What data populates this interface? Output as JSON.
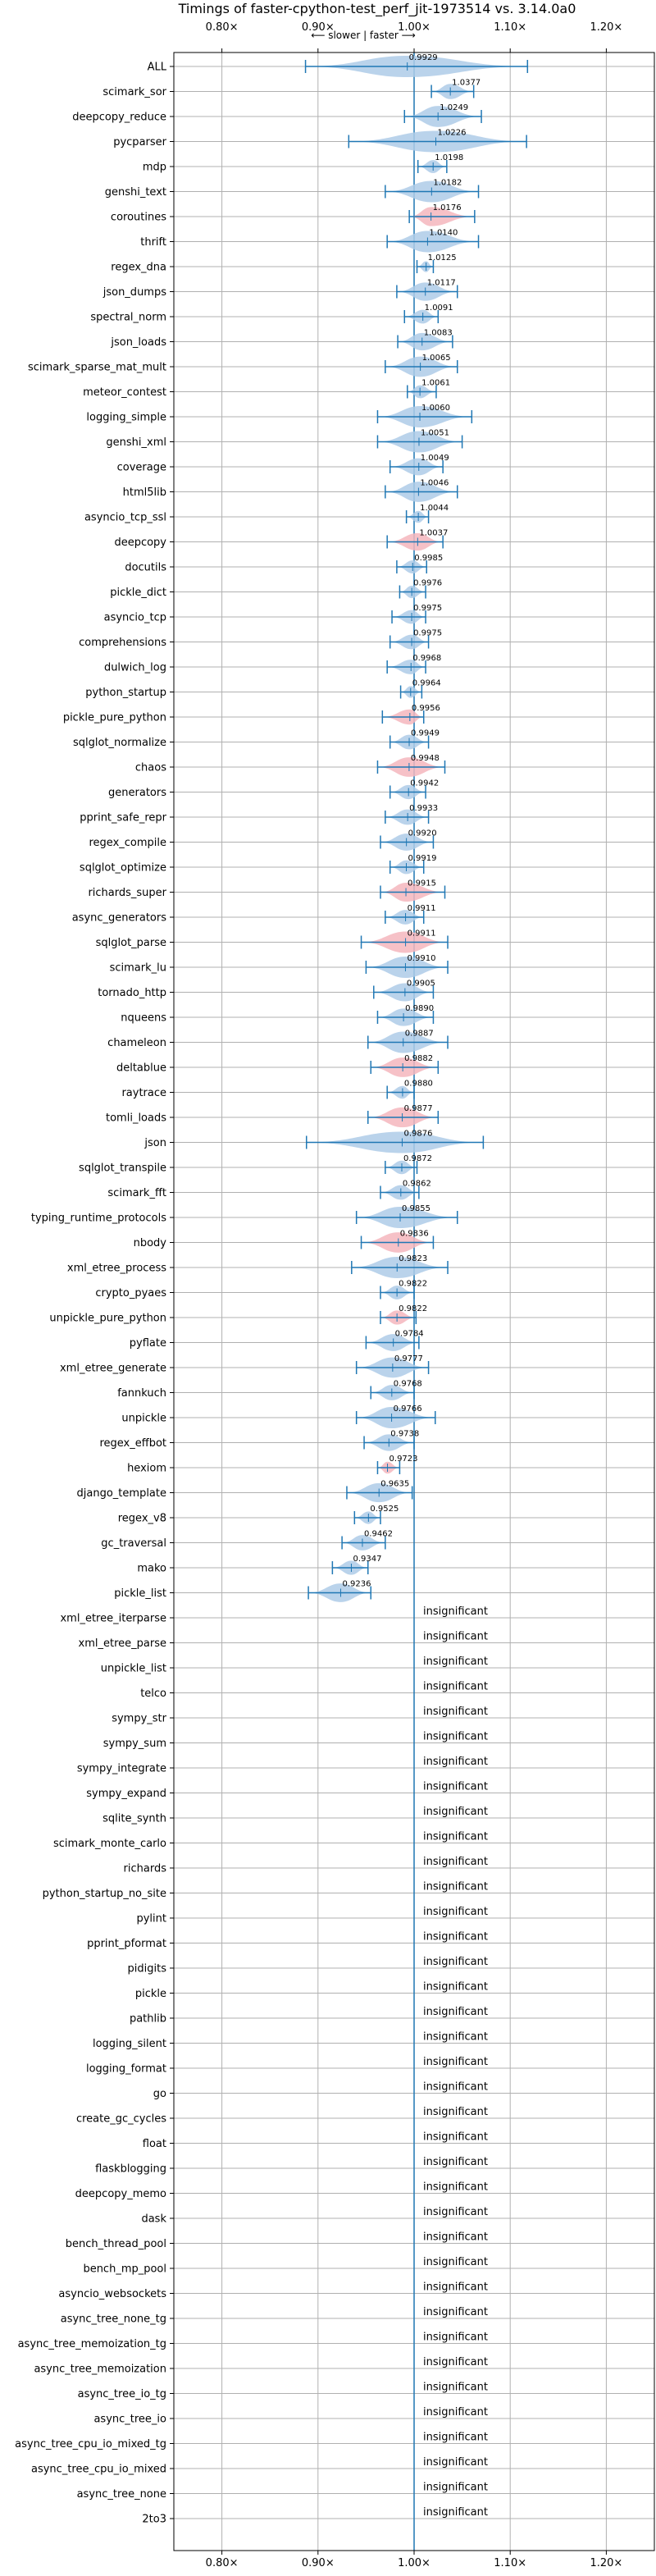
{
  "chart_data": {
    "type": "violin",
    "title": "Timings of faster-cpython-test_perf_jit-1973514 vs. 3.14.0a0",
    "direction_label": "⟵ slower | faster ⟶",
    "xlim": [
      0.75,
      1.25
    ],
    "x_ticks": [
      0.8,
      0.9,
      1.0,
      1.1,
      1.2
    ],
    "x_tick_labels": [
      "0.80×",
      "0.90×",
      "1.00×",
      "1.10×",
      "1.20×"
    ],
    "insignificant_label": "insignificant",
    "colors": {
      "faster": "#aecbe8",
      "slower": "#f4b6bd",
      "line": "#1f77b4",
      "grid": "#b0b0b0"
    },
    "benchmarks": [
      {
        "name": "ALL",
        "value": 0.9929,
        "min": 0.887,
        "max": 1.118,
        "label": "0.9929",
        "color": "blue"
      },
      {
        "name": "scimark_sor",
        "value": 1.0377,
        "min": 1.018,
        "max": 1.062,
        "label": "1.0377",
        "color": "blue"
      },
      {
        "name": "deepcopy_reduce",
        "value": 1.0249,
        "min": 0.99,
        "max": 1.07,
        "label": "1.0249",
        "color": "blue"
      },
      {
        "name": "pycparser",
        "value": 1.0226,
        "min": 0.932,
        "max": 1.117,
        "label": "1.0226",
        "color": "blue"
      },
      {
        "name": "mdp",
        "value": 1.0198,
        "min": 1.004,
        "max": 1.034,
        "label": "1.0198",
        "color": "blue"
      },
      {
        "name": "genshi_text",
        "value": 1.0182,
        "min": 0.97,
        "max": 1.067,
        "label": "1.0182",
        "color": "blue"
      },
      {
        "name": "coroutines",
        "value": 1.0176,
        "min": 0.995,
        "max": 1.063,
        "label": "1.0176",
        "color": "red"
      },
      {
        "name": "thrift",
        "value": 1.014,
        "min": 0.972,
        "max": 1.067,
        "label": "1.0140",
        "color": "blue"
      },
      {
        "name": "regex_dna",
        "value": 1.0125,
        "min": 1.003,
        "max": 1.02,
        "label": "1.0125",
        "color": "blue"
      },
      {
        "name": "json_dumps",
        "value": 1.0117,
        "min": 0.982,
        "max": 1.045,
        "label": "1.0117",
        "color": "blue"
      },
      {
        "name": "spectral_norm",
        "value": 1.0091,
        "min": 0.99,
        "max": 1.025,
        "label": "1.0091",
        "color": "blue"
      },
      {
        "name": "json_loads",
        "value": 1.0083,
        "min": 0.983,
        "max": 1.04,
        "label": "1.0083",
        "color": "blue"
      },
      {
        "name": "scimark_sparse_mat_mult",
        "value": 1.0065,
        "min": 0.97,
        "max": 1.045,
        "label": "1.0065",
        "color": "blue"
      },
      {
        "name": "meteor_contest",
        "value": 1.0061,
        "min": 0.993,
        "max": 1.023,
        "label": "1.0061",
        "color": "blue"
      },
      {
        "name": "logging_simple",
        "value": 1.006,
        "min": 0.962,
        "max": 1.06,
        "label": "1.0060",
        "color": "blue"
      },
      {
        "name": "genshi_xml",
        "value": 1.0051,
        "min": 0.962,
        "max": 1.05,
        "label": "1.0051",
        "color": "blue"
      },
      {
        "name": "coverage",
        "value": 1.0049,
        "min": 0.975,
        "max": 1.03,
        "label": "1.0049",
        "color": "blue"
      },
      {
        "name": "html5lib",
        "value": 1.0046,
        "min": 0.97,
        "max": 1.045,
        "label": "1.0046",
        "color": "blue"
      },
      {
        "name": "asyncio_tcp_ssl",
        "value": 1.0044,
        "min": 0.992,
        "max": 1.015,
        "label": "1.0044",
        "color": "blue"
      },
      {
        "name": "deepcopy",
        "value": 1.0037,
        "min": 0.972,
        "max": 1.03,
        "label": "1.0037",
        "color": "red"
      },
      {
        "name": "docutils",
        "value": 0.9985,
        "min": 0.982,
        "max": 1.013,
        "label": "0.9985",
        "color": "blue"
      },
      {
        "name": "pickle_dict",
        "value": 0.9976,
        "min": 0.985,
        "max": 1.012,
        "label": "0.9976",
        "color": "blue"
      },
      {
        "name": "asyncio_tcp",
        "value": 0.9975,
        "min": 0.977,
        "max": 1.012,
        "label": "0.9975",
        "color": "blue"
      },
      {
        "name": "comprehensions",
        "value": 0.9975,
        "min": 0.975,
        "max": 1.015,
        "label": "0.9975",
        "color": "blue"
      },
      {
        "name": "dulwich_log",
        "value": 0.9968,
        "min": 0.972,
        "max": 1.012,
        "label": "0.9968",
        "color": "blue"
      },
      {
        "name": "python_startup",
        "value": 0.9964,
        "min": 0.986,
        "max": 1.008,
        "label": "0.9964",
        "color": "blue"
      },
      {
        "name": "pickle_pure_python",
        "value": 0.9956,
        "min": 0.967,
        "max": 1.01,
        "label": "0.9956",
        "color": "red"
      },
      {
        "name": "sqlglot_normalize",
        "value": 0.9949,
        "min": 0.975,
        "max": 1.015,
        "label": "0.9949",
        "color": "blue"
      },
      {
        "name": "chaos",
        "value": 0.9948,
        "min": 0.962,
        "max": 1.032,
        "label": "0.9948",
        "color": "red"
      },
      {
        "name": "generators",
        "value": 0.9942,
        "min": 0.975,
        "max": 1.012,
        "label": "0.9942",
        "color": "blue"
      },
      {
        "name": "pprint_safe_repr",
        "value": 0.9933,
        "min": 0.97,
        "max": 1.015,
        "label": "0.9933",
        "color": "blue"
      },
      {
        "name": "regex_compile",
        "value": 0.992,
        "min": 0.965,
        "max": 1.02,
        "label": "0.9920",
        "color": "blue"
      },
      {
        "name": "sqlglot_optimize",
        "value": 0.9919,
        "min": 0.975,
        "max": 1.01,
        "label": "0.9919",
        "color": "blue"
      },
      {
        "name": "richards_super",
        "value": 0.9915,
        "min": 0.965,
        "max": 1.032,
        "label": "0.9915",
        "color": "red"
      },
      {
        "name": "async_generators",
        "value": 0.9911,
        "min": 0.97,
        "max": 1.01,
        "label": "0.9911",
        "color": "blue"
      },
      {
        "name": "sqlglot_parse",
        "value": 0.9911,
        "min": 0.945,
        "max": 1.035,
        "label": "0.9911",
        "color": "red"
      },
      {
        "name": "scimark_lu",
        "value": 0.991,
        "min": 0.95,
        "max": 1.035,
        "label": "0.9910",
        "color": "blue"
      },
      {
        "name": "tornado_http",
        "value": 0.9905,
        "min": 0.958,
        "max": 1.02,
        "label": "0.9905",
        "color": "blue"
      },
      {
        "name": "nqueens",
        "value": 0.989,
        "min": 0.962,
        "max": 1.02,
        "label": "0.9890",
        "color": "blue"
      },
      {
        "name": "chameleon",
        "value": 0.9887,
        "min": 0.952,
        "max": 1.035,
        "label": "0.9887",
        "color": "blue"
      },
      {
        "name": "deltablue",
        "value": 0.9882,
        "min": 0.955,
        "max": 1.025,
        "label": "0.9882",
        "color": "red"
      },
      {
        "name": "raytrace",
        "value": 0.988,
        "min": 0.972,
        "max": 1.0,
        "label": "0.9880",
        "color": "blue"
      },
      {
        "name": "tomli_loads",
        "value": 0.9877,
        "min": 0.952,
        "max": 1.025,
        "label": "0.9877",
        "color": "red"
      },
      {
        "name": "json",
        "value": 0.9876,
        "min": 0.888,
        "max": 1.072,
        "label": "0.9876",
        "color": "blue"
      },
      {
        "name": "sqlglot_transpile",
        "value": 0.9872,
        "min": 0.97,
        "max": 1.003,
        "label": "0.9872",
        "color": "blue"
      },
      {
        "name": "scimark_fft",
        "value": 0.9862,
        "min": 0.965,
        "max": 1.005,
        "label": "0.9862",
        "color": "blue"
      },
      {
        "name": "typing_runtime_protocols",
        "value": 0.9855,
        "min": 0.94,
        "max": 1.045,
        "label": "0.9855",
        "color": "blue"
      },
      {
        "name": "nbody",
        "value": 0.9836,
        "min": 0.945,
        "max": 1.02,
        "label": "0.9836",
        "color": "red"
      },
      {
        "name": "xml_etree_process",
        "value": 0.9823,
        "min": 0.935,
        "max": 1.035,
        "label": "0.9823",
        "color": "blue"
      },
      {
        "name": "crypto_pyaes",
        "value": 0.9822,
        "min": 0.965,
        "max": 1.0,
        "label": "0.9822",
        "color": "blue"
      },
      {
        "name": "unpickle_pure_python",
        "value": 0.9822,
        "min": 0.965,
        "max": 1.002,
        "label": "0.9822",
        "color": "red"
      },
      {
        "name": "pyflate",
        "value": 0.9784,
        "min": 0.95,
        "max": 1.005,
        "label": "0.9784",
        "color": "blue"
      },
      {
        "name": "xml_etree_generate",
        "value": 0.9777,
        "min": 0.94,
        "max": 1.015,
        "label": "0.9777",
        "color": "blue"
      },
      {
        "name": "fannkuch",
        "value": 0.9768,
        "min": 0.955,
        "max": 1.0,
        "label": "0.9768",
        "color": "blue"
      },
      {
        "name": "unpickle",
        "value": 0.9766,
        "min": 0.94,
        "max": 1.022,
        "label": "0.9766",
        "color": "blue"
      },
      {
        "name": "regex_effbot",
        "value": 0.9738,
        "min": 0.948,
        "max": 1.0,
        "label": "0.9738",
        "color": "blue"
      },
      {
        "name": "hexiom",
        "value": 0.9723,
        "min": 0.962,
        "max": 0.985,
        "label": "0.9723",
        "color": "red"
      },
      {
        "name": "django_template",
        "value": 0.9635,
        "min": 0.93,
        "max": 0.998,
        "label": "0.9635",
        "color": "blue"
      },
      {
        "name": "regex_v8",
        "value": 0.9525,
        "min": 0.938,
        "max": 0.965,
        "label": "0.9525",
        "color": "blue"
      },
      {
        "name": "gc_traversal",
        "value": 0.9462,
        "min": 0.925,
        "max": 0.97,
        "label": "0.9462",
        "color": "blue"
      },
      {
        "name": "mako",
        "value": 0.9347,
        "min": 0.915,
        "max": 0.952,
        "label": "0.9347",
        "color": "blue"
      },
      {
        "name": "pickle_list",
        "value": 0.9236,
        "min": 0.89,
        "max": 0.955,
        "label": "0.9236",
        "color": "blue"
      },
      {
        "name": "xml_etree_iterparse",
        "insignificant": true
      },
      {
        "name": "xml_etree_parse",
        "insignificant": true
      },
      {
        "name": "unpickle_list",
        "insignificant": true
      },
      {
        "name": "telco",
        "insignificant": true
      },
      {
        "name": "sympy_str",
        "insignificant": true
      },
      {
        "name": "sympy_sum",
        "insignificant": true
      },
      {
        "name": "sympy_integrate",
        "insignificant": true
      },
      {
        "name": "sympy_expand",
        "insignificant": true
      },
      {
        "name": "sqlite_synth",
        "insignificant": true
      },
      {
        "name": "scimark_monte_carlo",
        "insignificant": true
      },
      {
        "name": "richards",
        "insignificant": true
      },
      {
        "name": "python_startup_no_site",
        "insignificant": true
      },
      {
        "name": "pylint",
        "insignificant": true
      },
      {
        "name": "pprint_pformat",
        "insignificant": true
      },
      {
        "name": "pidigits",
        "insignificant": true
      },
      {
        "name": "pickle",
        "insignificant": true
      },
      {
        "name": "pathlib",
        "insignificant": true
      },
      {
        "name": "logging_silent",
        "insignificant": true
      },
      {
        "name": "logging_format",
        "insignificant": true
      },
      {
        "name": "go",
        "insignificant": true
      },
      {
        "name": "create_gc_cycles",
        "insignificant": true
      },
      {
        "name": "float",
        "insignificant": true
      },
      {
        "name": "flaskblogging",
        "insignificant": true
      },
      {
        "name": "deepcopy_memo",
        "insignificant": true
      },
      {
        "name": "dask",
        "insignificant": true
      },
      {
        "name": "bench_thread_pool",
        "insignificant": true
      },
      {
        "name": "bench_mp_pool",
        "insignificant": true
      },
      {
        "name": "asyncio_websockets",
        "insignificant": true
      },
      {
        "name": "async_tree_none_tg",
        "insignificant": true
      },
      {
        "name": "async_tree_memoization_tg",
        "insignificant": true
      },
      {
        "name": "async_tree_memoization",
        "insignificant": true
      },
      {
        "name": "async_tree_io_tg",
        "insignificant": true
      },
      {
        "name": "async_tree_io",
        "insignificant": true
      },
      {
        "name": "async_tree_cpu_io_mixed_tg",
        "insignificant": true
      },
      {
        "name": "async_tree_cpu_io_mixed",
        "insignificant": true
      },
      {
        "name": "async_tree_none",
        "insignificant": true
      },
      {
        "name": "2to3",
        "insignificant": true
      }
    ]
  }
}
